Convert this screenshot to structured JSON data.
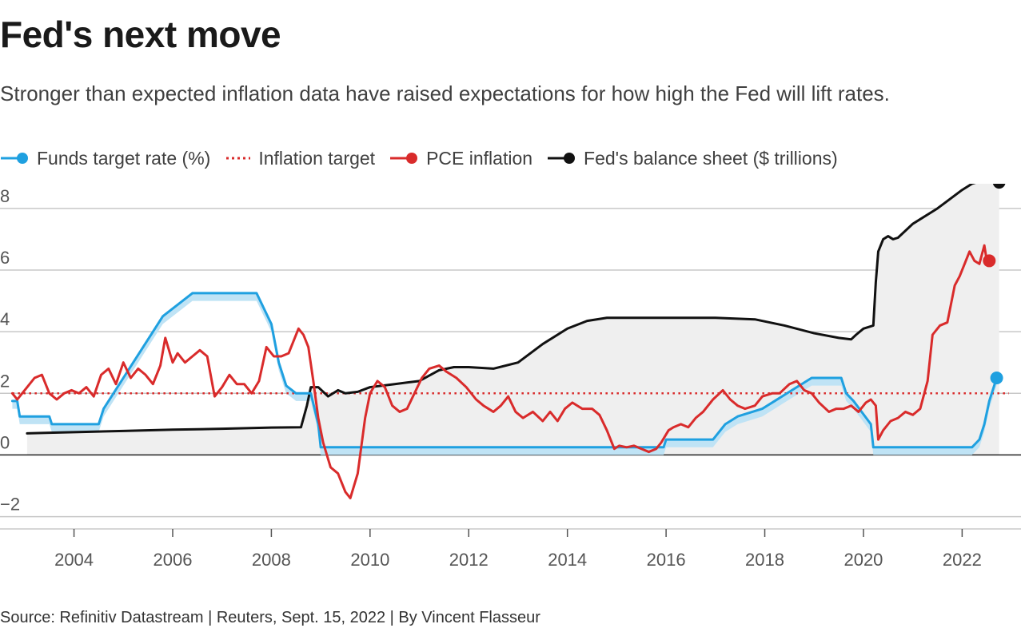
{
  "title": "Fed's next move",
  "subtitle": "Stronger than expected inflation data have raised expectations for how high the Fed will lift rates.",
  "source": "Source: Refinitiv Datastream | Reuters, Sept. 15, 2022 | By Vincent Flasseur",
  "legend": [
    {
      "key": "funds",
      "label": "Funds target rate (%)"
    },
    {
      "key": "target",
      "label": "Inflation target"
    },
    {
      "key": "pce",
      "label": "PCE inflation"
    },
    {
      "key": "balance",
      "label": "Fed's balance sheet ($ trillions)"
    }
  ],
  "colors": {
    "funds": "#1fa0e0",
    "funds_band": "#bfe3f5",
    "target": "#d92b2b",
    "pce": "#d92b2b",
    "balance": "#111111",
    "balance_fill": "#efefef",
    "grid": "#c8c8c8",
    "zero_line": "#222222"
  },
  "chart_data": {
    "type": "line",
    "title": "Fed's next move",
    "xlabel": "",
    "ylabel": "",
    "xlim": [
      2002.5,
      2022.95
    ],
    "ylim": [
      -2.4,
      8.8
    ],
    "y_ticks": [
      -2,
      0,
      2,
      4,
      6,
      8
    ],
    "y_tick_labels": [
      "−2",
      "0",
      "2",
      "4",
      "6",
      "8"
    ],
    "x_ticks": [
      2004,
      2006,
      2008,
      2010,
      2012,
      2014,
      2016,
      2018,
      2020,
      2022
    ],
    "x_tick_labels": [
      "2004",
      "2006",
      "2008",
      "2010",
      "2012",
      "2014",
      "2016",
      "2018",
      "2020",
      "2022"
    ],
    "inflation_target": 2,
    "series": [
      {
        "name": "Funds target rate (%)",
        "x": [
          2002.75,
          2002.85,
          2002.9,
          2003.5,
          2003.55,
          2004.5,
          2004.6,
          2004.8,
          2005.0,
          2005.2,
          2005.4,
          2005.6,
          2005.8,
          2006.0,
          2006.2,
          2006.4,
          2006.55,
          2007.7,
          2007.85,
          2008.0,
          2008.15,
          2008.3,
          2008.5,
          2008.8,
          2008.95,
          2009.0,
          2015.95,
          2016.0,
          2016.95,
          2017.2,
          2017.45,
          2017.95,
          2018.2,
          2018.45,
          2018.7,
          2018.95,
          2019.55,
          2019.65,
          2019.8,
          2020.15,
          2020.2,
          2022.2,
          2022.35,
          2022.45,
          2022.55,
          2022.7
        ],
        "values": [
          1.75,
          1.75,
          1.25,
          1.25,
          1.0,
          1.0,
          1.5,
          2.0,
          2.5,
          3.0,
          3.5,
          4.0,
          4.5,
          4.75,
          5.0,
          5.25,
          5.25,
          5.25,
          4.75,
          4.25,
          3.0,
          2.25,
          2.0,
          2.0,
          1.0,
          0.25,
          0.25,
          0.5,
          0.5,
          1.0,
          1.25,
          1.5,
          1.75,
          2.0,
          2.25,
          2.5,
          2.5,
          2.0,
          1.75,
          1.0,
          0.25,
          0.25,
          0.5,
          1.0,
          1.75,
          2.5
        ],
        "band_lower_offset": 0.25
      },
      {
        "name": "PCE inflation",
        "x": [
          2002.75,
          2002.85,
          2003.0,
          2003.2,
          2003.35,
          2003.5,
          2003.65,
          2003.8,
          2003.95,
          2004.1,
          2004.25,
          2004.4,
          2004.55,
          2004.7,
          2004.85,
          2005.0,
          2005.15,
          2005.3,
          2005.45,
          2005.6,
          2005.75,
          2005.85,
          2006.0,
          2006.1,
          2006.25,
          2006.4,
          2006.55,
          2006.7,
          2006.85,
          2007.0,
          2007.15,
          2007.3,
          2007.45,
          2007.6,
          2007.75,
          2007.9,
          2008.05,
          2008.2,
          2008.35,
          2008.55,
          2008.65,
          2008.75,
          2008.85,
          2008.95,
          2009.05,
          2009.2,
          2009.35,
          2009.5,
          2009.6,
          2009.75,
          2009.9,
          2010.0,
          2010.15,
          2010.3,
          2010.45,
          2010.6,
          2010.75,
          2010.9,
          2011.05,
          2011.2,
          2011.4,
          2011.55,
          2011.75,
          2011.95,
          2012.15,
          2012.3,
          2012.5,
          2012.65,
          2012.8,
          2012.95,
          2013.1,
          2013.3,
          2013.5,
          2013.65,
          2013.8,
          2013.95,
          2014.1,
          2014.3,
          2014.5,
          2014.65,
          2014.8,
          2014.95,
          2015.05,
          2015.2,
          2015.35,
          2015.5,
          2015.65,
          2015.8,
          2015.9,
          2016.05,
          2016.15,
          2016.3,
          2016.45,
          2016.6,
          2016.75,
          2016.95,
          2017.15,
          2017.3,
          2017.45,
          2017.6,
          2017.8,
          2017.95,
          2018.15,
          2018.3,
          2018.5,
          2018.65,
          2018.8,
          2018.95,
          2019.1,
          2019.3,
          2019.45,
          2019.6,
          2019.75,
          2019.9,
          2020.05,
          2020.15,
          2020.25,
          2020.3,
          2020.4,
          2020.55,
          2020.7,
          2020.85,
          2021.0,
          2021.15,
          2021.3,
          2021.4,
          2021.55,
          2021.7,
          2021.85,
          2021.95,
          2022.05,
          2022.15,
          2022.25,
          2022.35,
          2022.45,
          2022.5,
          2022.55
        ],
        "values": [
          2.0,
          1.8,
          2.1,
          2.5,
          2.6,
          2.0,
          1.8,
          2.0,
          2.1,
          2.0,
          2.2,
          1.9,
          2.6,
          2.8,
          2.3,
          3.0,
          2.5,
          2.8,
          2.6,
          2.3,
          2.9,
          3.8,
          3.0,
          3.3,
          3.0,
          3.2,
          3.4,
          3.2,
          1.9,
          2.2,
          2.6,
          2.3,
          2.3,
          2.0,
          2.4,
          3.5,
          3.2,
          3.2,
          3.3,
          4.1,
          3.9,
          3.5,
          2.4,
          1.2,
          0.4,
          -0.4,
          -0.6,
          -1.2,
          -1.4,
          -0.6,
          1.2,
          2.0,
          2.4,
          2.2,
          1.6,
          1.4,
          1.5,
          2.0,
          2.5,
          2.8,
          2.9,
          2.7,
          2.5,
          2.2,
          1.8,
          1.6,
          1.4,
          1.6,
          1.9,
          1.4,
          1.2,
          1.4,
          1.1,
          1.4,
          1.1,
          1.5,
          1.7,
          1.5,
          1.5,
          1.3,
          0.8,
          0.2,
          0.3,
          0.25,
          0.3,
          0.2,
          0.1,
          0.2,
          0.4,
          0.8,
          0.9,
          1.0,
          0.9,
          1.2,
          1.4,
          1.8,
          2.1,
          1.8,
          1.6,
          1.5,
          1.6,
          1.9,
          2.0,
          2.0,
          2.3,
          2.4,
          2.1,
          2.0,
          1.7,
          1.4,
          1.5,
          1.5,
          1.6,
          1.4,
          1.7,
          1.8,
          1.6,
          0.5,
          0.8,
          1.1,
          1.2,
          1.4,
          1.3,
          1.5,
          2.4,
          3.9,
          4.2,
          4.3,
          5.5,
          5.8,
          6.2,
          6.6,
          6.3,
          6.2,
          6.8,
          6.3,
          6.3
        ],
        "end_marker": true
      },
      {
        "name": "Fed's balance sheet ($ trillions)",
        "x": [
          2003.05,
          2003.5,
          2004.0,
          2005.0,
          2006.0,
          2007.0,
          2008.0,
          2008.6,
          2008.72,
          2008.8,
          2008.95,
          2009.15,
          2009.35,
          2009.5,
          2009.75,
          2010.0,
          2010.5,
          2011.0,
          2011.4,
          2011.7,
          2012.0,
          2012.5,
          2013.0,
          2013.5,
          2014.0,
          2014.4,
          2014.8,
          2015.2,
          2016.0,
          2017.0,
          2017.8,
          2018.4,
          2019.0,
          2019.5,
          2019.75,
          2019.85,
          2020.0,
          2020.2,
          2020.25,
          2020.3,
          2020.4,
          2020.5,
          2020.6,
          2020.7,
          2021.0,
          2021.5,
          2022.0,
          2022.2,
          2022.4,
          2022.6,
          2022.75
        ],
        "values": [
          0.7,
          0.72,
          0.74,
          0.78,
          0.82,
          0.85,
          0.89,
          0.9,
          1.6,
          2.2,
          2.2,
          1.9,
          2.1,
          2.0,
          2.05,
          2.2,
          2.3,
          2.4,
          2.75,
          2.85,
          2.85,
          2.8,
          3.0,
          3.6,
          4.1,
          4.35,
          4.45,
          4.45,
          4.45,
          4.45,
          4.4,
          4.2,
          3.95,
          3.8,
          3.75,
          3.9,
          4.1,
          4.2,
          5.6,
          6.6,
          7.0,
          7.1,
          7.0,
          7.05,
          7.5,
          8.0,
          8.6,
          8.8,
          8.9,
          8.9,
          8.85
        ],
        "filled": true,
        "end_marker": true
      }
    ]
  }
}
